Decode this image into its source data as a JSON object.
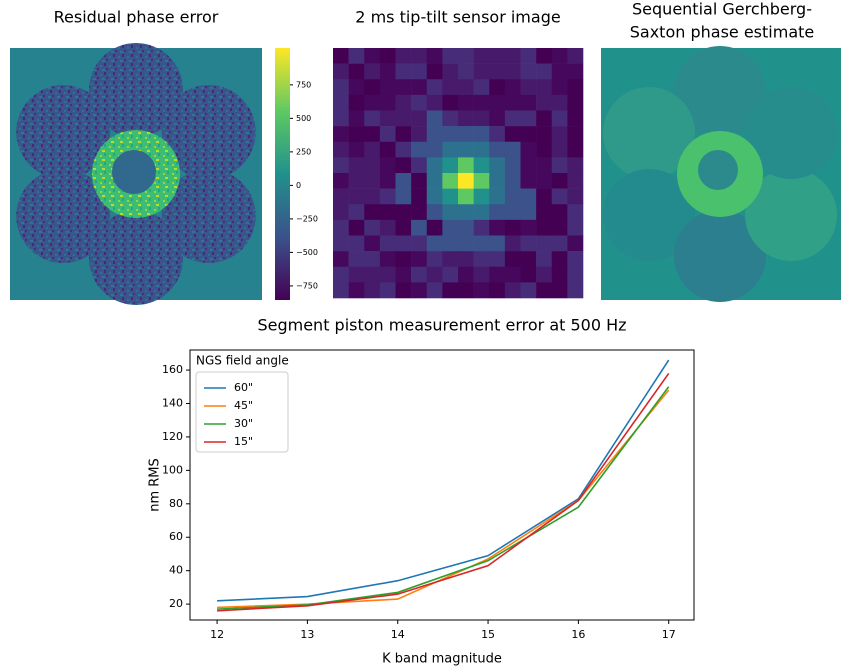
{
  "images": [
    {
      "title": "Residual phase error"
    },
    {
      "title": "2 ms tip-tilt sensor image"
    },
    {
      "title_lines": [
        "Sequential Gerchberg-",
        "Saxton phase estimate"
      ]
    }
  ],
  "colorbar": {
    "lim": [
      -855,
      1025
    ],
    "ticks": [
      750,
      500,
      250,
      0,
      {
        "value": -250,
        "label": "−250"
      },
      {
        "value": -500,
        "label": "−500"
      },
      {
        "value": -750,
        "label": "−750"
      }
    ]
  },
  "chart_data": {
    "type": "line",
    "title": "Segment piston measurement error at 500 Hz",
    "x_label": "K band magnitude",
    "y_label": "nm RMS",
    "x": [
      12,
      13,
      14,
      15,
      16,
      17
    ],
    "series": [
      {
        "name": "60\"",
        "color": "#1f77b4",
        "values": [
          22,
          24.5,
          34,
          49,
          83,
          166
        ]
      },
      {
        "name": "45\"",
        "color": "#ff7f0e",
        "values": [
          18,
          20,
          23,
          47,
          82,
          148
        ]
      },
      {
        "name": "30\"",
        "color": "#2ca02c",
        "values": [
          17,
          19.5,
          27,
          46,
          78,
          150
        ]
      },
      {
        "name": "15\"",
        "color": "#d62728",
        "values": [
          16,
          19,
          26,
          43,
          82,
          158
        ]
      }
    ],
    "legend_title": "NGS field angle",
    "legend": "upper left",
    "xlim": [
      11.7,
      17.28
    ],
    "ylim": [
      10.5,
      172
    ],
    "xticks": [
      12,
      13,
      14,
      15,
      16,
      17
    ],
    "yticks": [
      20,
      40,
      60,
      80,
      100,
      120,
      140,
      160
    ],
    "grid": false
  }
}
